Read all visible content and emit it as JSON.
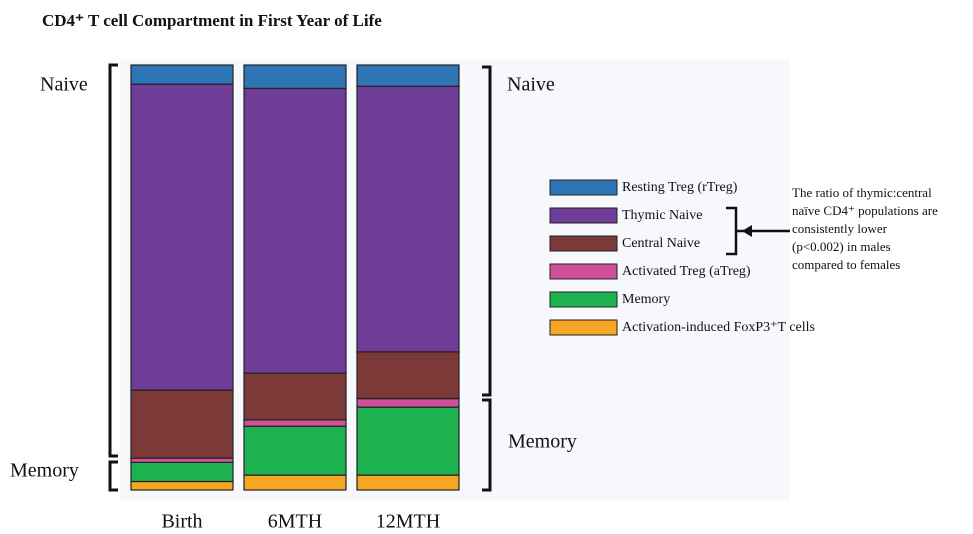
{
  "chart_data": {
    "type": "stacked_bar",
    "title": "CD4⁺ T cell Compartment in First Year of Life",
    "categories": [
      "Birth",
      "6MTH",
      "12MTH"
    ],
    "series": [
      {
        "name": "Resting Treg (rTreg)",
        "color": "#2e75b6",
        "values": [
          4.5,
          5.5,
          5
        ]
      },
      {
        "name": "Thymic Naive",
        "color": "#6f3c98",
        "values": [
          72,
          67,
          62.5
        ]
      },
      {
        "name": "Central Naive",
        "color": "#7b3a37",
        "values": [
          16,
          11,
          11
        ]
      },
      {
        "name": "Activated Treg (aTreg)",
        "color": "#d0509a",
        "values": [
          1,
          1.5,
          2
        ]
      },
      {
        "name": "Memory",
        "color": "#1db14f",
        "values": [
          4.5,
          11.5,
          16
        ]
      },
      {
        "name": "Activation-induced FoxP3⁺T cells",
        "color": "#f5a623",
        "values": [
          2,
          3.5,
          3.5
        ]
      }
    ],
    "annotations": {
      "left_naive": "Naive",
      "left_memory": "Memory",
      "right_naive": "Naive",
      "right_memory": "Memory",
      "note": [
        "The ratio of thymic:central",
        "naïve CD4⁺ populations are",
        "consistently lower",
        "(p<0.002) in males",
        "compared to females"
      ]
    }
  }
}
